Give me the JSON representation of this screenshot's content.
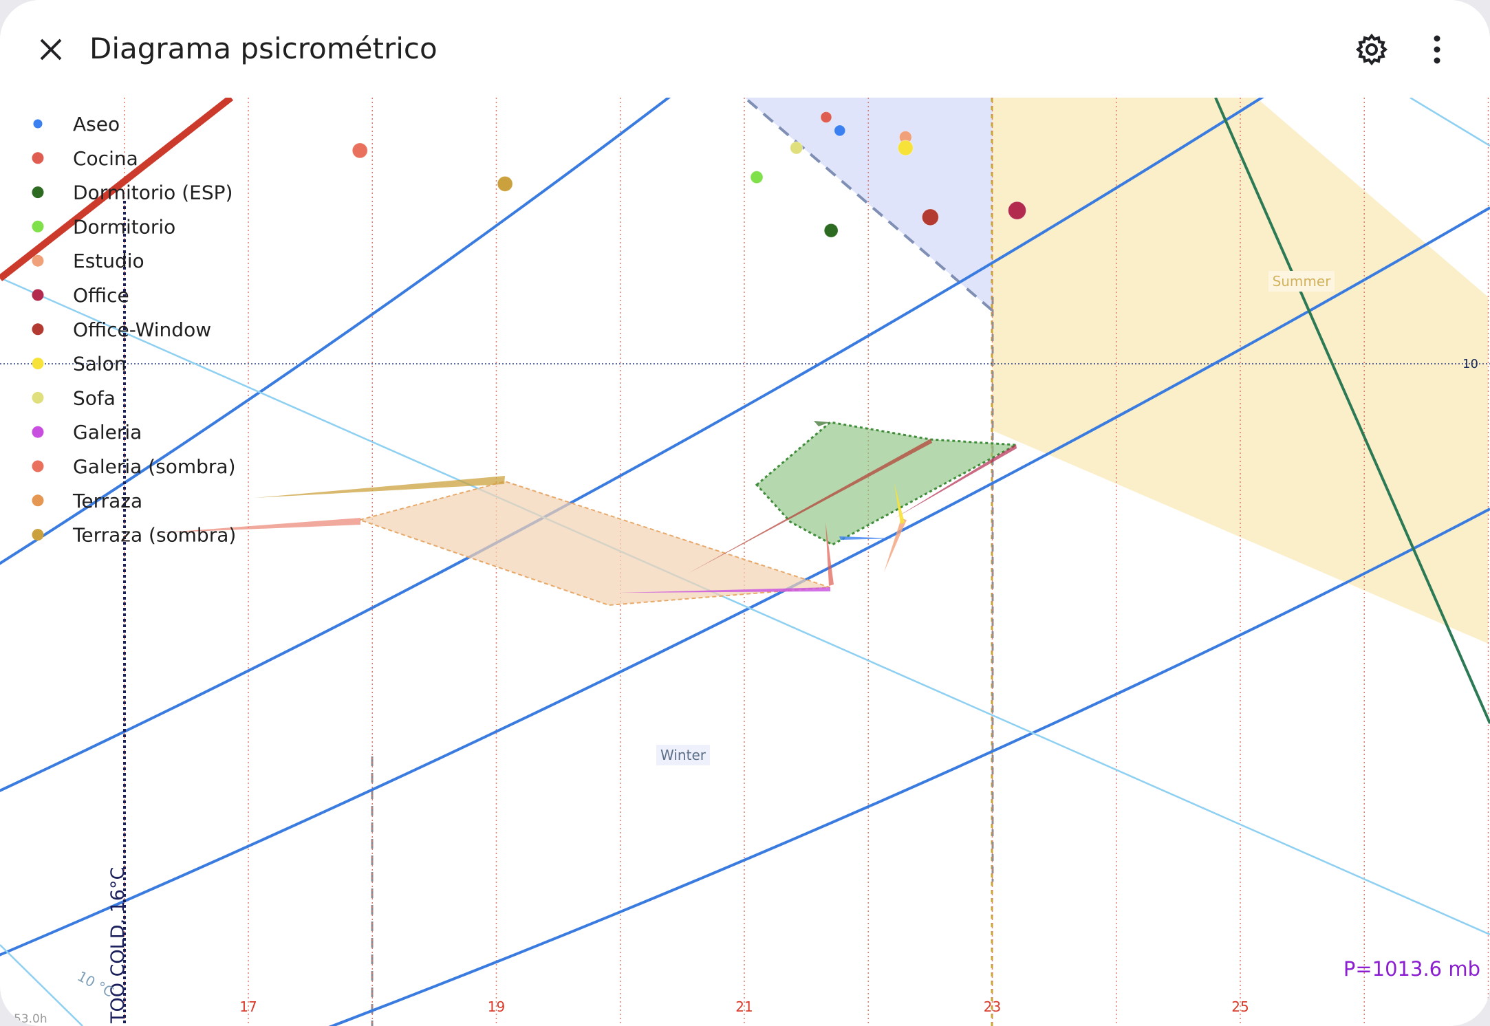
{
  "app": {
    "title": "Diagrama psicrométrico",
    "close_icon": "close-icon",
    "settings_icon": "gear-icon",
    "menu_icon": "more-vertical-icon"
  },
  "chart_data": {
    "type": "scatter",
    "title": "",
    "xlabel": "",
    "ylabel": "",
    "xlim": [
      15,
      27
    ],
    "ylim": [
      4.9,
      12.1
    ],
    "x_ticks": [
      "17",
      "19",
      "21",
      "23",
      "25"
    ],
    "y_ticks": [
      "7.5",
      "10"
    ],
    "legend_position": "top-left",
    "grid": true,
    "pressure_label": "P=1013.6 mb",
    "too_cold_label": "TOO COLD, 16°C",
    "temp_curve_label": "10 °C",
    "time_label": "53.0h",
    "zones": [
      {
        "name": "Winter",
        "color": "#dfe4fb",
        "points": [
          [
            18,
            5.6
          ],
          [
            23,
            9.6
          ],
          [
            23,
            5.8
          ],
          [
            18,
            3.5
          ]
        ]
      },
      {
        "name": "Summer",
        "color": "#fbefc9",
        "points": [
          [
            23,
            10.5
          ],
          [
            27,
            12.1
          ],
          [
            27,
            9.5
          ],
          [
            23,
            6.3
          ]
        ]
      }
    ],
    "series": [
      {
        "name": "Aseo",
        "color": "#3a80f0",
        "x": 21.77,
        "y": 8.25
      },
      {
        "name": "Cocina",
        "color": "#df5d50",
        "x": 21.66,
        "y": 8.15
      },
      {
        "name": "Dormitorio (ESP)",
        "color": "#2e6b22",
        "x": 21.7,
        "y": 9.0
      },
      {
        "name": "Dormitorio",
        "color": "#7fe04a",
        "x": 21.1,
        "y": 8.6
      },
      {
        "name": "Estudio",
        "color": "#f1a17a",
        "x": 22.3,
        "y": 8.3
      },
      {
        "name": "Office",
        "color": "#b32a4f",
        "x": 23.2,
        "y": 8.85
      },
      {
        "name": "Office-Window",
        "color": "#b23a30",
        "x": 22.5,
        "y": 8.9
      },
      {
        "name": "Salon",
        "color": "#f7e23a",
        "x": 22.3,
        "y": 8.38
      },
      {
        "name": "Sofa",
        "color": "#dfe07d",
        "x": 21.42,
        "y": 8.38
      },
      {
        "name": "Galeria",
        "color": "#c84ee0",
        "x": 21.7,
        "y": 7.87
      },
      {
        "name": "Galeria (sombra)",
        "color": "#e8705c",
        "x": 17.9,
        "y": 8.4
      },
      {
        "name": "Terraza",
        "color": "#e59650",
        "x": 19.9,
        "y": 7.75
      },
      {
        "name": "Terraza (sombra)",
        "color": "#cba13d",
        "x": 19.07,
        "y": 8.65
      }
    ]
  }
}
